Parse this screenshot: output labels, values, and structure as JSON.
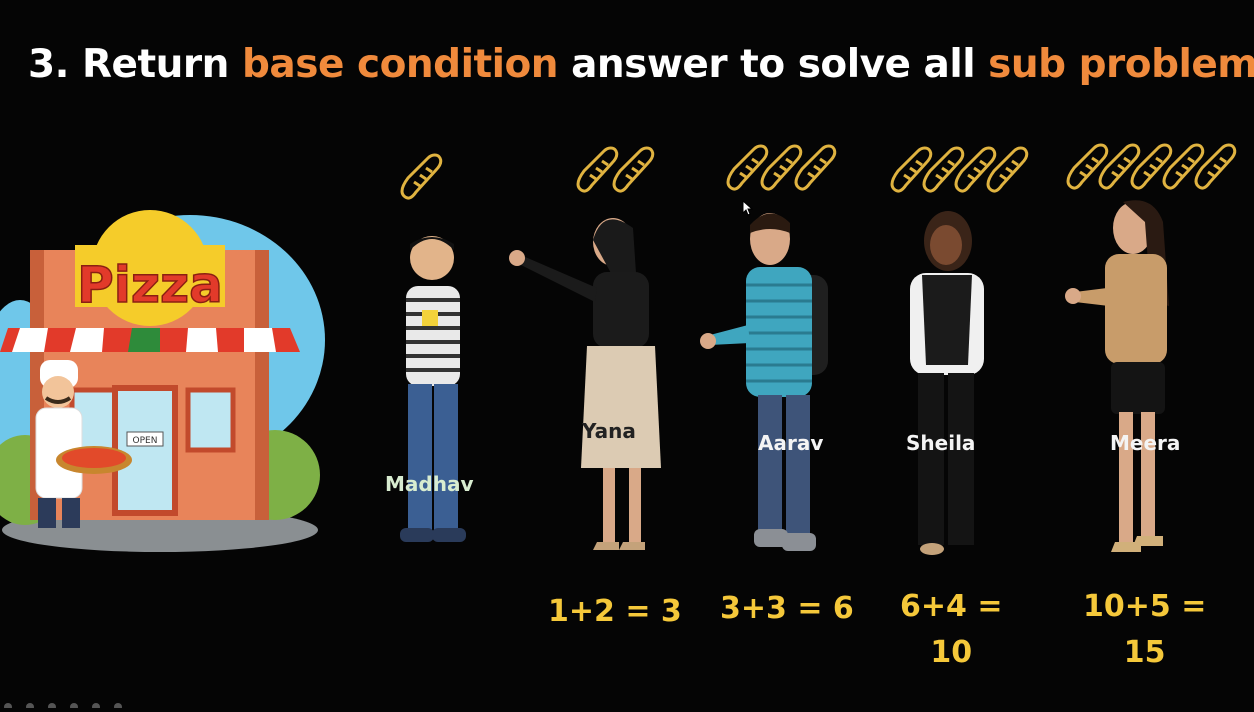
{
  "slide": {
    "title_prefix": "3. Return ",
    "title_highlight_1": "base condition",
    "title_middle": " answer to solve all ",
    "title_highlight_2": "sub problems",
    "accent_color": "#f08a3c",
    "sum_color": "#f5c83a",
    "bread_color": "#e0b340"
  },
  "shop": {
    "sign_text": "Pizza",
    "door_sign": "OPEN"
  },
  "people": [
    {
      "name": "Madhav",
      "bread_count": 1
    },
    {
      "name": "Yana",
      "bread_count": 2,
      "sum": "1+2 = 3"
    },
    {
      "name": "Aarav",
      "bread_count": 3,
      "sum": "3+3 = 6"
    },
    {
      "name": "Sheila",
      "bread_count": 4,
      "sum_line1": "6+4 =",
      "sum_line2": "10"
    },
    {
      "name": "Meera",
      "bread_count": 5,
      "sum_line1": "10+5 =",
      "sum_line2": "15"
    }
  ]
}
